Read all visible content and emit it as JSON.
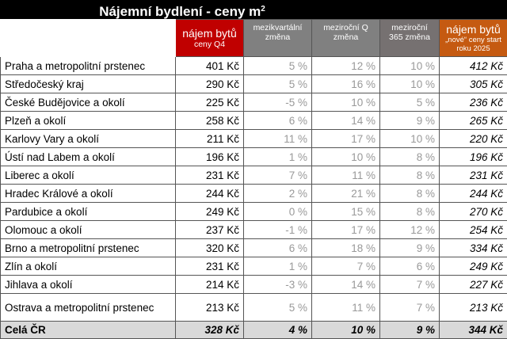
{
  "title": {
    "text": "Nájemní bydlení - ceny m",
    "sup": "2"
  },
  "headers": {
    "rent_line1": "nájem bytů",
    "rent_line2": "ceny Q4",
    "qoq": "mezikvartální změna",
    "yoy_q": "meziroční Q změna",
    "yoy_365": "meziroční 365 změna",
    "new_line1": "nájem bytů",
    "new_line2": "„nové“ ceny start roku 2025"
  },
  "colors": {
    "red": "#c00000",
    "gray": "#808080",
    "orange": "#c55a11",
    "total_bg": "#d9d9d9"
  },
  "rows": [
    {
      "region": "Praha a metropolitní prstenec",
      "price": "401 Kč",
      "qoq": "5 %",
      "yoy_q": "12 %",
      "yoy_365": "10 %",
      "new_price": "412 Kč"
    },
    {
      "region": "Středočeský kraj",
      "price": "290 Kč",
      "qoq": "5 %",
      "yoy_q": "16 %",
      "yoy_365": "10 %",
      "new_price": "305 Kč"
    },
    {
      "region": "České Budějovice a okolí",
      "price": "225 Kč",
      "qoq": "-5 %",
      "yoy_q": "10 %",
      "yoy_365": "5 %",
      "new_price": "236 Kč"
    },
    {
      "region": "Plzeň a okolí",
      "price": "258 Kč",
      "qoq": "6 %",
      "yoy_q": "14 %",
      "yoy_365": "9 %",
      "new_price": "265 Kč"
    },
    {
      "region": "Karlovy Vary a okolí",
      "price": "211 Kč",
      "qoq": "11 %",
      "yoy_q": "17 %",
      "yoy_365": "10 %",
      "new_price": "220 Kč"
    },
    {
      "region": "Ústí nad Labem a okolí",
      "price": "196 Kč",
      "qoq": "1 %",
      "yoy_q": "10 %",
      "yoy_365": "8 %",
      "new_price": "196 Kč"
    },
    {
      "region": "Liberec a okolí",
      "price": "231 Kč",
      "qoq": "7 %",
      "yoy_q": "11 %",
      "yoy_365": "8 %",
      "new_price": "231 Kč"
    },
    {
      "region": "Hradec Králové a okolí",
      "price": "244 Kč",
      "qoq": "2 %",
      "yoy_q": "21 %",
      "yoy_365": "8 %",
      "new_price": "244 Kč"
    },
    {
      "region": "Pardubice a okolí",
      "price": "249 Kč",
      "qoq": "0 %",
      "yoy_q": "15 %",
      "yoy_365": "8 %",
      "new_price": "270 Kč"
    },
    {
      "region": "Olomouc a okolí",
      "price": "237 Kč",
      "qoq": "-1 %",
      "yoy_q": "17 %",
      "yoy_365": "12 %",
      "new_price": "254 Kč"
    },
    {
      "region": "Brno a metropolitní prstenec",
      "price": "320 Kč",
      "qoq": "6 %",
      "yoy_q": "18 %",
      "yoy_365": "9 %",
      "new_price": "334 Kč"
    },
    {
      "region": "Zlín a okolí",
      "price": "231 Kč",
      "qoq": "1 %",
      "yoy_q": "7 %",
      "yoy_365": "6 %",
      "new_price": "249 Kč"
    },
    {
      "region": "Jihlava a okolí",
      "price": "214 Kč",
      "qoq": "-3 %",
      "yoy_q": "14 %",
      "yoy_365": "7 %",
      "new_price": "227 Kč"
    },
    {
      "region": "Ostrava a metropolitní prstenec",
      "price": "213 Kč",
      "qoq": "5 %",
      "yoy_q": "11 %",
      "yoy_365": "7 %",
      "new_price": "213 Kč"
    }
  ],
  "total": {
    "region": "Celá ČR",
    "price": "328 Kč",
    "qoq": "4 %",
    "yoy_q": "10 %",
    "yoy_365": "9 %",
    "new_price": "344 Kč"
  }
}
